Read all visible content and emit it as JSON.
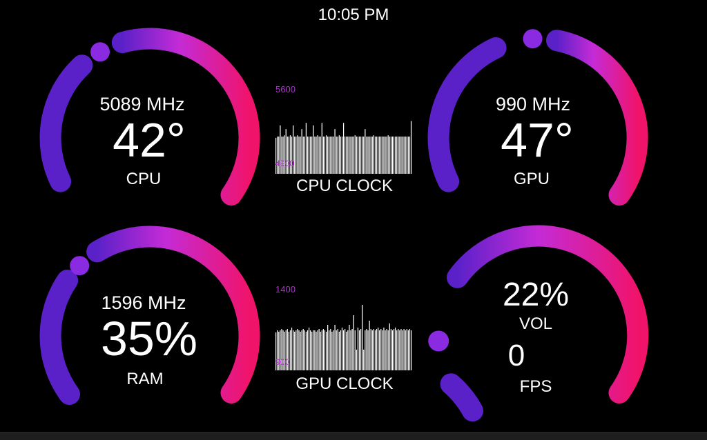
{
  "time": "10:05 PM",
  "colors": {
    "arc_start": "#5b21c9",
    "arc_mid": "#c42bd6",
    "arc_end": "#f0136a",
    "graph_label": "#b32fd4"
  },
  "cpu_gauge": {
    "freq": "5089 MHz",
    "value": "42°",
    "label": "CPU"
  },
  "gpu_gauge": {
    "freq": "990 MHz",
    "value": "47°",
    "label": "GPU"
  },
  "ram_gauge": {
    "freq": "1596 MHz",
    "value": "35%",
    "label": "RAM"
  },
  "vol_gauge": {
    "value": "22%",
    "label": "VOL",
    "fps": "0",
    "fps_label": "FPS"
  },
  "cpu_clock_graph": {
    "title": "CPU CLOCK",
    "max_label": "5600",
    "min_label": "4900",
    "levels": [
      0.58,
      0.6,
      0.6,
      0.78,
      0.6,
      0.6,
      0.62,
      0.72,
      0.6,
      0.6,
      0.62,
      0.6,
      0.78,
      0.6,
      0.6,
      0.62,
      0.6,
      0.6,
      0.72,
      0.6,
      0.6,
      0.82,
      0.6,
      0.6,
      0.6,
      0.6,
      0.78,
      0.6,
      0.6,
      0.62,
      0.6,
      0.6,
      0.82,
      0.6,
      0.6,
      0.62,
      0.6,
      0.6,
      0.6,
      0.6,
      0.6,
      0.72,
      0.6,
      0.6,
      0.62,
      0.6,
      0.6,
      0.82,
      0.6,
      0.6,
      0.6,
      0.6,
      0.6,
      0.6,
      0.6,
      0.62,
      0.6,
      0.6,
      0.6,
      0.6,
      0.6,
      0.6,
      0.72,
      0.6,
      0.6,
      0.6,
      0.6,
      0.6,
      0.62,
      0.6,
      0.6,
      0.6,
      0.6,
      0.6,
      0.6,
      0.6,
      0.6,
      0.6,
      0.62,
      0.6,
      0.6,
      0.6,
      0.6,
      0.6,
      0.6,
      0.6,
      0.6,
      0.6,
      0.6,
      0.6,
      0.6,
      0.6,
      0.6,
      0.6,
      0.85
    ]
  },
  "gpu_clock_graph": {
    "title": "GPU CLOCK",
    "max_label": "1400",
    "min_label": "900",
    "levels": [
      0.55,
      0.58,
      0.56,
      0.58,
      0.6,
      0.58,
      0.56,
      0.58,
      0.6,
      0.56,
      0.58,
      0.62,
      0.58,
      0.56,
      0.58,
      0.6,
      0.58,
      0.56,
      0.58,
      0.6,
      0.58,
      0.56,
      0.58,
      0.62,
      0.58,
      0.56,
      0.58,
      0.58,
      0.56,
      0.58,
      0.6,
      0.56,
      0.58,
      0.6,
      0.58,
      0.56,
      0.66,
      0.58,
      0.6,
      0.56,
      0.58,
      0.66,
      0.58,
      0.6,
      0.56,
      0.58,
      0.62,
      0.58,
      0.6,
      0.56,
      0.58,
      0.66,
      0.58,
      0.6,
      0.8,
      0.58,
      0.3,
      0.62,
      0.58,
      0.6,
      0.95,
      0.3,
      0.58,
      0.6,
      0.58,
      0.72,
      0.6,
      0.58,
      0.6,
      0.58,
      0.6,
      0.62,
      0.58,
      0.6,
      0.58,
      0.62,
      0.58,
      0.6,
      0.58,
      0.68,
      0.6,
      0.58,
      0.6,
      0.62,
      0.58,
      0.6,
      0.58,
      0.6,
      0.58,
      0.6,
      0.58,
      0.6,
      0.58,
      0.6,
      0.58
    ]
  }
}
